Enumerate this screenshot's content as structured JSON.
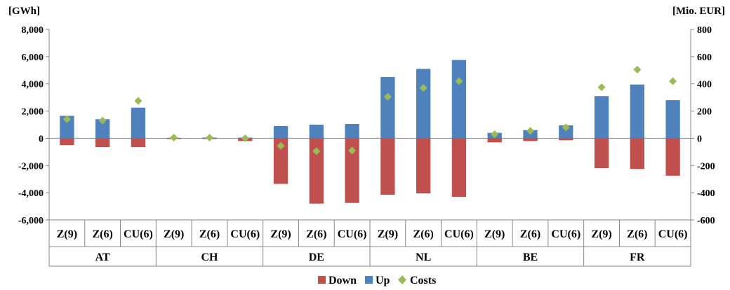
{
  "chart_data": {
    "type": "bar",
    "left_unit": "[GWh]",
    "right_unit": "[Mio. EUR]",
    "left_ylim": [
      -6000,
      8000
    ],
    "left_ticks": [
      "8,000",
      "6,000",
      "4,000",
      "2,000",
      "0",
      "-2,000",
      "-4,000",
      "-6,000"
    ],
    "right_ylim": [
      -600,
      800
    ],
    "right_ticks": [
      "800",
      "600",
      "400",
      "200",
      "0",
      "-200",
      "-400",
      "-600"
    ],
    "grid": false,
    "groups": [
      {
        "name": "AT",
        "categories": [
          "Z(9)",
          "Z(6)",
          "CU(6)"
        ]
      },
      {
        "name": "CH",
        "categories": [
          "Z(9)",
          "Z(6)",
          "CU(6)"
        ]
      },
      {
        "name": "DE",
        "categories": [
          "Z(9)",
          "Z(6)",
          "CU(6)"
        ]
      },
      {
        "name": "NL",
        "categories": [
          "Z(9)",
          "Z(6)",
          "CU(6)"
        ]
      },
      {
        "name": "BE",
        "categories": [
          "Z(9)",
          "Z(6)",
          "CU(6)"
        ]
      },
      {
        "name": "FR",
        "categories": [
          "Z(9)",
          "Z(6)",
          "CU(6)"
        ]
      }
    ],
    "series": [
      {
        "name": "Down",
        "type": "bar",
        "axis": "left",
        "color": "#C0504D",
        "values": [
          -500,
          -650,
          -650,
          -30,
          -50,
          -200,
          -3350,
          -4800,
          -4750,
          -4150,
          -4050,
          -4300,
          -300,
          -200,
          -150,
          -2200,
          -2250,
          -2750
        ]
      },
      {
        "name": "Up",
        "type": "bar",
        "axis": "left",
        "color": "#4F81BD",
        "values": [
          1650,
          1400,
          2250,
          30,
          50,
          50,
          900,
          1000,
          1050,
          4500,
          5100,
          5750,
          400,
          600,
          950,
          3100,
          3950,
          2800
        ]
      },
      {
        "name": "Costs",
        "type": "scatter",
        "axis": "right",
        "color": "#9BBB59",
        "values": [
          140,
          130,
          275,
          5,
          5,
          0,
          -55,
          -95,
          -90,
          305,
          370,
          420,
          30,
          55,
          80,
          375,
          505,
          420
        ]
      }
    ],
    "legend_position": "bottom"
  }
}
